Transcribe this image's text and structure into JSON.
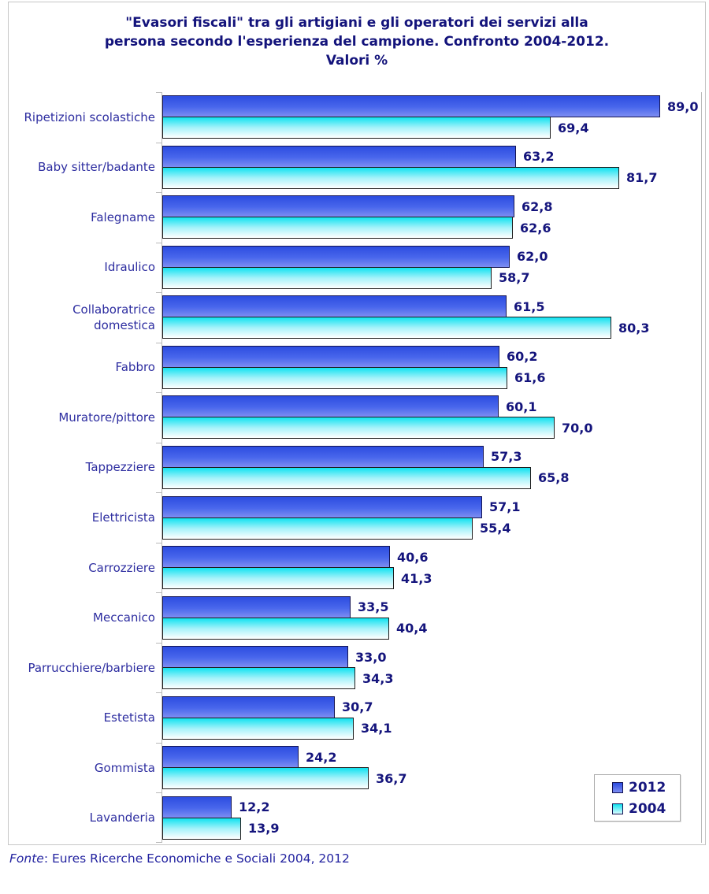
{
  "title": "\"Evasori fiscali\" tra gli artigiani e gli operatori dei servizi alla\npersona secondo l'esperienza del campione. Confronto 2004-2012.\nValori %",
  "footer": {
    "prefix": "Fonte",
    "rest": ": Eures Ricerche Economiche e Sociali 2004, 2012"
  },
  "legend": {
    "items": [
      {
        "label": "2012",
        "color": "#4a68ec"
      },
      {
        "label": "2004",
        "color": "#10e2f0"
      }
    ],
    "position": "bottom-right"
  },
  "colors": {
    "title_text": "#13137b",
    "category_text": "#2d2da0",
    "value_text": "#14147c",
    "bar_2012_top": "#2c4ce0",
    "bar_2012_bottom": "#7d8df2",
    "bar_2004_top": "#10e2f0",
    "bar_2004_bottom": "#ffffff",
    "frame_border": "#c6c6c6"
  },
  "chart_data": {
    "type": "bar",
    "orientation": "horizontal",
    "title": "\"Evasori fiscali\" tra gli artigiani e gli operatori dei servizi alla persona secondo l'esperienza del campione. Confronto 2004-2012. Valori %",
    "xlabel": "",
    "ylabel": "",
    "xlim": [
      0,
      96.6
    ],
    "grid": false,
    "decimal_separator": ",",
    "categories": [
      "Ripetizioni scolastiche",
      "Baby sitter/badante",
      "Falegname",
      "Idraulico",
      "Collaboratrice\ndomestica",
      "Fabbro",
      "Muratore/pittore",
      "Tappezziere",
      "Elettricista",
      "Carrozziere",
      "Meccanico",
      "Parrucchiere/barbiere",
      "Estetista",
      "Gommista",
      "Lavanderia"
    ],
    "series": [
      {
        "name": "2012",
        "values": [
          89.0,
          63.2,
          62.8,
          62.0,
          61.5,
          60.2,
          60.1,
          57.3,
          57.1,
          40.6,
          33.5,
          33.0,
          30.7,
          24.2,
          12.2
        ],
        "display_values": [
          "89,0",
          "63,2",
          "62,8",
          "62,0",
          "61,5",
          "60,2",
          "60,1",
          "57,3",
          "57,1",
          "40,6",
          "33,5",
          "33,0",
          "30,7",
          "24,2",
          "12,2"
        ]
      },
      {
        "name": "2004",
        "values": [
          69.4,
          81.7,
          62.6,
          58.7,
          80.3,
          61.6,
          70.0,
          65.8,
          55.4,
          41.3,
          40.4,
          34.3,
          34.1,
          36.7,
          13.9
        ],
        "display_values": [
          "69,4",
          "81,7",
          "62,6",
          "58,7",
          "80,3",
          "61,6",
          "70,0",
          "65,8",
          "55,4",
          "41,3",
          "40,4",
          "34,3",
          "34,1",
          "36,7",
          "13,9"
        ]
      }
    ]
  }
}
